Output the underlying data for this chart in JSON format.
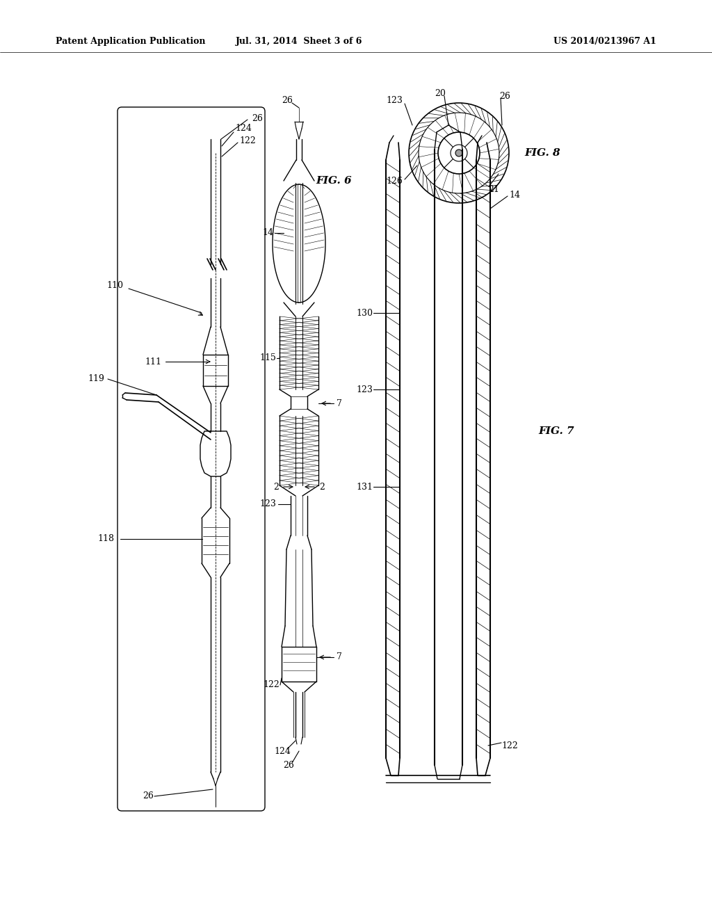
{
  "title_left": "Patent Application Publication",
  "title_mid": "Jul. 31, 2014  Sheet 3 of 6",
  "title_right": "US 2014/0213967 A1",
  "background_color": "#ffffff"
}
